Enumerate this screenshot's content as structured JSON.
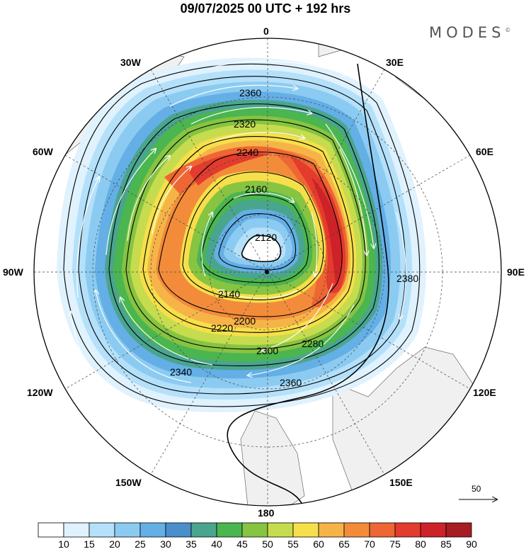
{
  "title": "09/07/2025  00 UTC  + 192 hrs",
  "brand": "MODES",
  "brand_mark": "©",
  "longitude_labels": {
    "top": "0",
    "e30": "30E",
    "e60": "60E",
    "e90": "90E",
    "e120": "120E",
    "e150": "150E",
    "bottom": "180",
    "w150": "150W",
    "w120": "120W",
    "w90": "90W",
    "w60": "60W",
    "w30": "30W"
  },
  "contour_labels": [
    "2120",
    "2140",
    "2160",
    "2200",
    "2220",
    "2240",
    "2280",
    "2300",
    "2320",
    "2340",
    "2360",
    "2380"
  ],
  "reference_vector": {
    "label": "50",
    "icon": "arrow-right-icon"
  },
  "colorbar": {
    "tick_labels": [
      "10",
      "15",
      "20",
      "25",
      "30",
      "35",
      "40",
      "45",
      "50",
      "55",
      "60",
      "65",
      "70",
      "75",
      "80",
      "85",
      "90"
    ],
    "colors": [
      "#ffffff",
      "#dff2fd",
      "#b4e0fa",
      "#8ccbf1",
      "#64afe6",
      "#4a8fcc",
      "#4aa58e",
      "#4bb54f",
      "#86c442",
      "#c6dc4e",
      "#f6df4a",
      "#f6b448",
      "#f38c3a",
      "#ee6633",
      "#e33b2d",
      "#cd2227",
      "#a61d22"
    ]
  }
}
